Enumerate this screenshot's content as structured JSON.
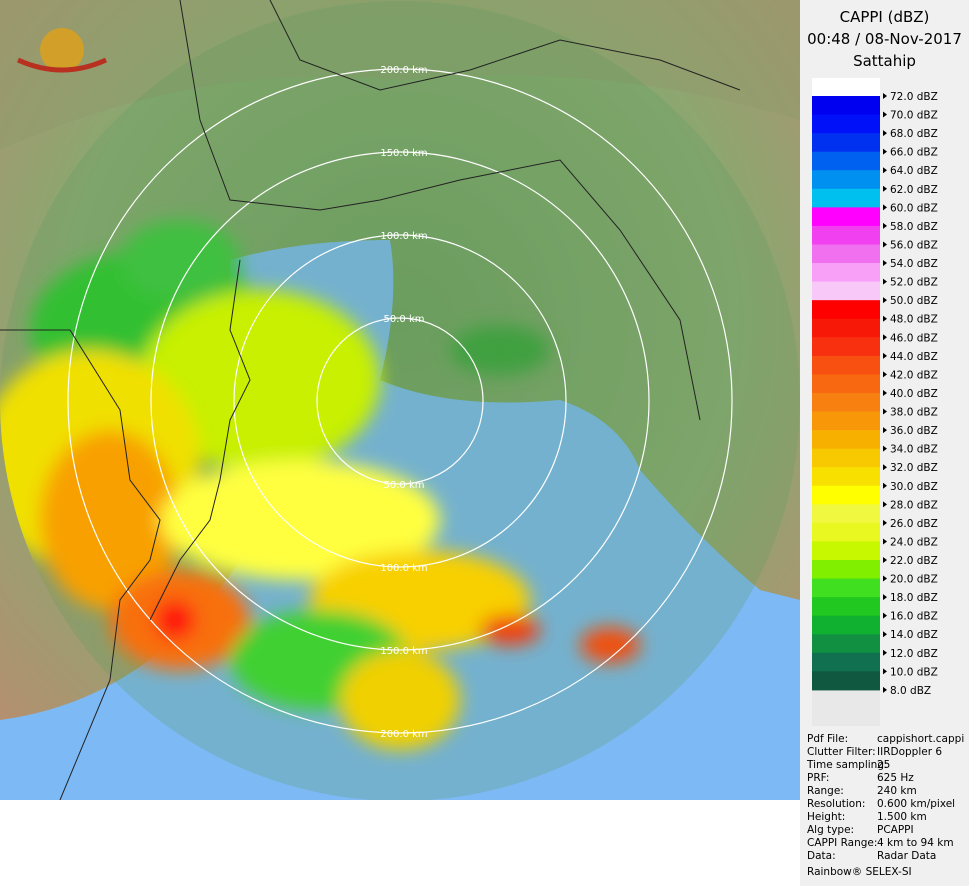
{
  "header": {
    "title": "CAPPI (dBZ)",
    "time": "00:48 / 08-Nov-2017",
    "site": "Sattahip"
  },
  "rings": {
    "north": [
      "200.0 km",
      "150.0 km",
      "100.0 km",
      "50.0 km"
    ],
    "south": [
      "50.0 km",
      "100.0 km",
      "150.0 km",
      "200.0 km"
    ]
  },
  "scale": {
    "labels": [
      "72.0 dBZ",
      "70.0 dBZ",
      "68.0 dBZ",
      "66.0 dBZ",
      "64.0 dBZ",
      "62.0 dBZ",
      "60.0 dBZ",
      "58.0 dBZ",
      "56.0 dBZ",
      "54.0 dBZ",
      "52.0 dBZ",
      "50.0 dBZ",
      "48.0 dBZ",
      "46.0 dBZ",
      "44.0 dBZ",
      "42.0 dBZ",
      "40.0 dBZ",
      "38.0 dBZ",
      "36.0 dBZ",
      "34.0 dBZ",
      "32.0 dBZ",
      "30.0 dBZ",
      "28.0 dBZ",
      "26.0 dBZ",
      "24.0 dBZ",
      "22.0 dBZ",
      "20.0 dBZ",
      "18.0 dBZ",
      "16.0 dBZ",
      "14.0 dBZ",
      "12.0 dBZ",
      "10.0 dBZ",
      "8.0 dBZ"
    ],
    "colors": [
      "#0000f0",
      "#0010f8",
      "#0030f0",
      "#0060f0",
      "#0090f0",
      "#00c0f0",
      "#ff00ff",
      "#f040f0",
      "#f070f0",
      "#f8a0f8",
      "#f8c8f8",
      "#ff0000",
      "#f81808",
      "#f83010",
      "#f85010",
      "#f86810",
      "#f88010",
      "#f89808",
      "#f8b000",
      "#f8c800",
      "#f8e000",
      "#ffff00",
      "#f0f840",
      "#e8f820",
      "#c8f800",
      "#80f000",
      "#40e020",
      "#20c820",
      "#10b030",
      "#109040",
      "#107050",
      "#105840"
    ]
  },
  "info": [
    [
      "Pdf File:",
      "cappishort.cappi"
    ],
    [
      "Clutter Filter:",
      "IIRDoppler 6"
    ],
    [
      "Time sampling:",
      "25"
    ],
    [
      "PRF:",
      "625 Hz"
    ],
    [
      "Range:",
      "240 km"
    ],
    [
      "Resolution:",
      "0.600 km/pixel"
    ],
    [
      "Height:",
      "1.500 km"
    ],
    [
      "Alg type:",
      "PCAPPI"
    ],
    [
      "CAPPI Range:",
      "4 km to 94 km"
    ],
    [
      "Data:",
      "Radar Data"
    ]
  ],
  "footer": "Rainbow® SELEX-SI"
}
